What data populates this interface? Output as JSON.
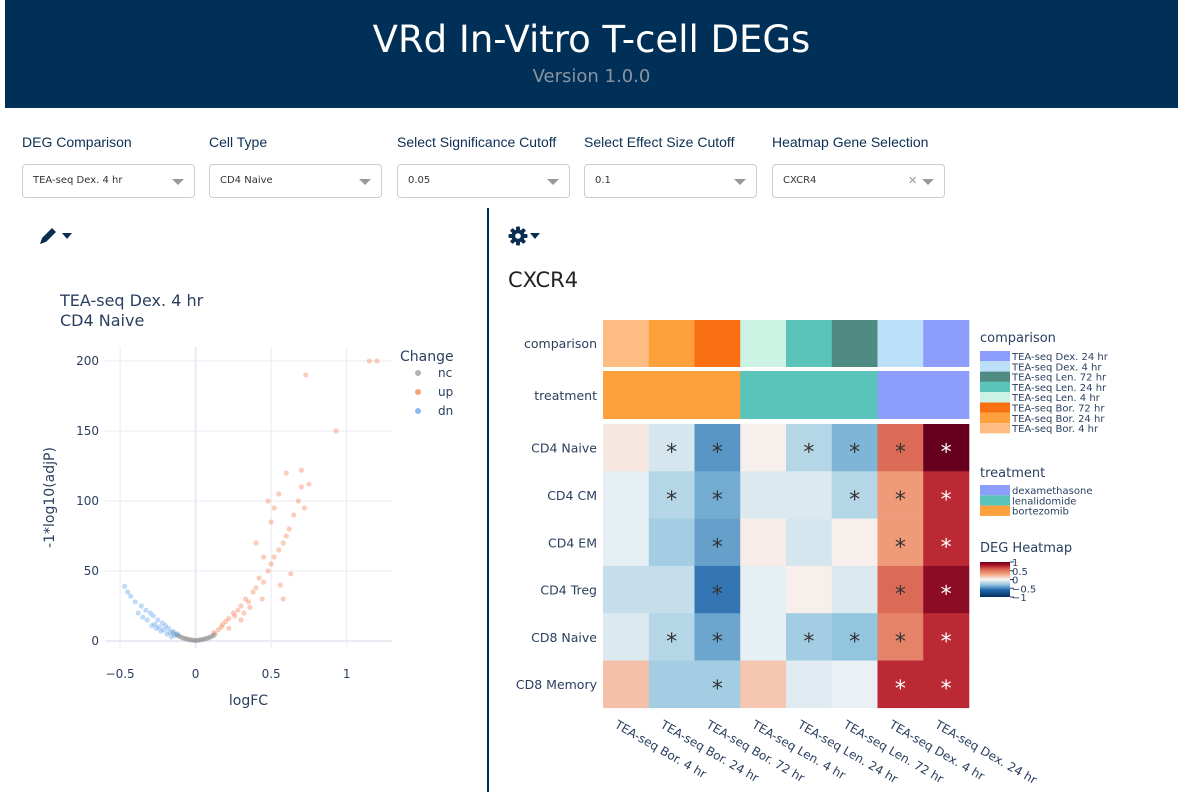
{
  "header": {
    "title": "VRd In-Vitro T-cell DEGs",
    "version": "Version 1.0.0"
  },
  "controls": [
    {
      "label": "DEG Comparison",
      "value": "TEA-seq Dex. 4 hr"
    },
    {
      "label": "Cell Type",
      "value": "CD4 Naive"
    },
    {
      "label": "Select Significance Cutoff",
      "value": "0.05"
    },
    {
      "label": "Select Effect Size Cutoff",
      "value": "0.1"
    },
    {
      "label": "Heatmap Gene Selection",
      "value": "CXCR4"
    }
  ],
  "icons": {
    "left_tool": "pencil-icon",
    "right_tool": "gear-icon"
  },
  "volcano": {
    "title_line1": "TEA-seq Dex. 4 hr",
    "title_line2": "CD4 Naive",
    "legend_title": "Change",
    "legend": [
      {
        "name": "nc",
        "color": "#7f7f7f"
      },
      {
        "name": "up",
        "color": "#ef6530"
      },
      {
        "name": "dn",
        "color": "#3a8ee6"
      }
    ]
  },
  "heatmap": {
    "title": "CXCR4",
    "comparison_label": "comparison",
    "treatment_label": "treatment",
    "legend_comparison_title": "comparison",
    "legend_comparison": [
      {
        "name": "TEA-seq Dex. 24 hr",
        "color": "#8c9dfb"
      },
      {
        "name": "TEA-seq Dex. 4 hr",
        "color": "#bde0f9"
      },
      {
        "name": "TEA-seq Len. 72 hr",
        "color": "#4f8a83"
      },
      {
        "name": "TEA-seq Len. 24 hr",
        "color": "#5bc4ba"
      },
      {
        "name": "TEA-seq Len. 4 hr",
        "color": "#ccf2e4"
      },
      {
        "name": "TEA-seq Bor. 72 hr",
        "color": "#f97012"
      },
      {
        "name": "TEA-seq Bor. 24 hr",
        "color": "#fea03b"
      },
      {
        "name": "TEA-seq Bor. 4 hr",
        "color": "#fdbc82"
      }
    ],
    "legend_treatment_title": "treatment",
    "legend_treatment": [
      {
        "name": "dexamethasone",
        "color": "#8c9dfb"
      },
      {
        "name": "lenalidomide",
        "color": "#5bc4ba"
      },
      {
        "name": "bortezomib",
        "color": "#fea03b"
      }
    ],
    "colorbar_title": "DEG Heatmap",
    "colorbar_ticks": [
      "1",
      "0.5",
      "0",
      "−0.5",
      "−1"
    ]
  },
  "chart_data": [
    {
      "type": "scatter",
      "title": "TEA-seq Dex. 4 hr\nCD4 Naive",
      "xlabel": "logFC",
      "ylabel": "-1*log10(adjP)",
      "xlim": [
        -0.6,
        1.3
      ],
      "ylim": [
        -5,
        210
      ],
      "xticks": [
        "−0.5",
        "0",
        "0.5",
        "1"
      ],
      "xtick_values": [
        -0.5,
        0,
        0.5,
        1
      ],
      "yticks": [
        "0",
        "50",
        "100",
        "150",
        "200"
      ],
      "ytick_values": [
        0,
        50,
        100,
        150,
        200
      ],
      "grid": true,
      "legend_position": "top-right",
      "series": [
        {
          "name": "nc",
          "points": [
            [
              -0.15,
              6
            ],
            [
              -0.12,
              4
            ],
            [
              -0.1,
              3
            ],
            [
              -0.08,
              2
            ],
            [
              -0.06,
              1.5
            ],
            [
              -0.04,
              1
            ],
            [
              -0.02,
              0.6
            ],
            [
              0,
              0.4
            ],
            [
              0.02,
              0.6
            ],
            [
              0.04,
              1
            ],
            [
              0.06,
              1.5
            ],
            [
              0.08,
              2
            ],
            [
              0.1,
              3
            ],
            [
              0.12,
              4
            ],
            [
              -0.13,
              5
            ],
            [
              -0.09,
              2.5
            ],
            [
              -0.05,
              1.2
            ],
            [
              -0.01,
              0.5
            ],
            [
              0.01,
              0.5
            ],
            [
              0.05,
              1.2
            ],
            [
              0.09,
              2.5
            ],
            [
              0.13,
              5
            ],
            [
              0.07,
              1.8
            ],
            [
              -0.07,
              1.8
            ],
            [
              0.03,
              0.8
            ],
            [
              -0.03,
              0.8
            ],
            [
              0.11,
              3.5
            ],
            [
              -0.11,
              3.5
            ]
          ]
        },
        {
          "name": "up",
          "points": [
            [
              0.12,
              6
            ],
            [
              0.15,
              8
            ],
            [
              0.17,
              10
            ],
            [
              0.2,
              14
            ],
            [
              0.22,
              16
            ],
            [
              0.25,
              20
            ],
            [
              0.28,
              22
            ],
            [
              0.3,
              25
            ],
            [
              0.33,
              30
            ],
            [
              0.35,
              28
            ],
            [
              0.38,
              35
            ],
            [
              0.4,
              38
            ],
            [
              0.42,
              45
            ],
            [
              0.45,
              42
            ],
            [
              0.48,
              50
            ],
            [
              0.5,
              55
            ],
            [
              0.52,
              60
            ],
            [
              0.55,
              65
            ],
            [
              0.58,
              70
            ],
            [
              0.6,
              75
            ],
            [
              0.62,
              80
            ],
            [
              0.65,
              90
            ],
            [
              0.68,
              100
            ],
            [
              0.7,
              110
            ],
            [
              0.72,
              95
            ],
            [
              0.5,
              85
            ],
            [
              0.45,
              60
            ],
            [
              0.4,
              70
            ],
            [
              0.55,
              105
            ],
            [
              0.6,
              120
            ],
            [
              0.48,
              100
            ],
            [
              0.52,
              95
            ],
            [
              0.75,
              112
            ],
            [
              0.7,
              122
            ],
            [
              0.73,
              190
            ],
            [
              0.93,
              150
            ],
            [
              1.15,
              200
            ],
            [
              1.2,
              200
            ],
            [
              0.18,
              12
            ],
            [
              0.26,
              18
            ],
            [
              0.32,
              20
            ],
            [
              0.36,
              24
            ],
            [
              0.44,
              30
            ],
            [
              0.56,
              40
            ],
            [
              0.63,
              48
            ],
            [
              0.3,
              15
            ],
            [
              0.22,
              9
            ],
            [
              0.58,
              30
            ]
          ]
        },
        {
          "name": "dn",
          "points": [
            [
              -0.12,
              5
            ],
            [
              -0.15,
              7
            ],
            [
              -0.18,
              9
            ],
            [
              -0.2,
              11
            ],
            [
              -0.22,
              13
            ],
            [
              -0.25,
              15
            ],
            [
              -0.28,
              18
            ],
            [
              -0.3,
              20
            ],
            [
              -0.33,
              22
            ],
            [
              -0.36,
              25
            ],
            [
              -0.4,
              28
            ],
            [
              -0.43,
              32
            ],
            [
              -0.45,
              35
            ],
            [
              -0.47,
              39
            ],
            [
              -0.14,
              4
            ],
            [
              -0.17,
              6
            ],
            [
              -0.21,
              8
            ],
            [
              -0.24,
              10
            ],
            [
              -0.27,
              12
            ],
            [
              -0.32,
              15
            ],
            [
              -0.35,
              17
            ],
            [
              -0.38,
              20
            ],
            [
              -0.16,
              3
            ],
            [
              -0.19,
              5
            ],
            [
              -0.23,
              7
            ],
            [
              -0.26,
              9
            ],
            [
              -0.29,
              11
            ]
          ]
        }
      ]
    },
    {
      "type": "heatmap",
      "title": "CXCR4",
      "x": [
        "TEA-seq Bor. 4 hr",
        "TEA-seq Bor. 24 hr",
        "TEA-seq Bor. 72 hr",
        "TEA-seq Len. 4 hr",
        "TEA-seq Len. 24 hr",
        "TEA-seq Len. 72 hr",
        "TEA-seq Dex. 4 hr",
        "TEA-seq Dex. 24 hr"
      ],
      "y": [
        "CD4 Naive",
        "CD4 CM",
        "CD4 EM",
        "CD4 Treg",
        "CD8 Naive",
        "CD8 Memory"
      ],
      "colorscale_range": [
        -1,
        1
      ],
      "values": [
        [
          0.06,
          -0.1,
          -0.45,
          0.03,
          -0.2,
          -0.35,
          0.55,
          1.0
        ],
        [
          -0.05,
          -0.2,
          -0.38,
          -0.08,
          -0.08,
          -0.2,
          0.35,
          0.75
        ],
        [
          -0.05,
          -0.25,
          -0.42,
          0.04,
          -0.1,
          0.03,
          0.35,
          0.75
        ],
        [
          -0.15,
          -0.15,
          -0.55,
          -0.05,
          0.03,
          -0.08,
          0.55,
          0.9
        ],
        [
          -0.08,
          -0.2,
          -0.4,
          -0.05,
          -0.25,
          -0.3,
          0.45,
          0.75
        ],
        [
          0.2,
          -0.25,
          -0.25,
          0.18,
          -0.07,
          -0.04,
          0.75,
          0.75
        ]
      ],
      "significance": [
        [
          false,
          true,
          true,
          false,
          true,
          true,
          true,
          true
        ],
        [
          false,
          true,
          true,
          false,
          false,
          true,
          true,
          true
        ],
        [
          false,
          false,
          true,
          false,
          false,
          false,
          true,
          true
        ],
        [
          false,
          false,
          true,
          false,
          false,
          false,
          true,
          true
        ],
        [
          false,
          true,
          true,
          false,
          true,
          true,
          true,
          true
        ],
        [
          false,
          false,
          true,
          false,
          false,
          false,
          true,
          true
        ]
      ],
      "comparison_row": [
        "TEA-seq Bor. 4 hr",
        "TEA-seq Bor. 24 hr",
        "TEA-seq Bor. 72 hr",
        "TEA-seq Len. 4 hr",
        "TEA-seq Len. 24 hr",
        "TEA-seq Len. 72 hr",
        "TEA-seq Dex. 4 hr",
        "TEA-seq Dex. 24 hr"
      ],
      "treatment_row": [
        "bortezomib",
        "bortezomib",
        "bortezomib",
        "lenalidomide",
        "lenalidomide",
        "lenalidomide",
        "dexamethasone",
        "dexamethasone"
      ],
      "star_label": "*"
    }
  ]
}
